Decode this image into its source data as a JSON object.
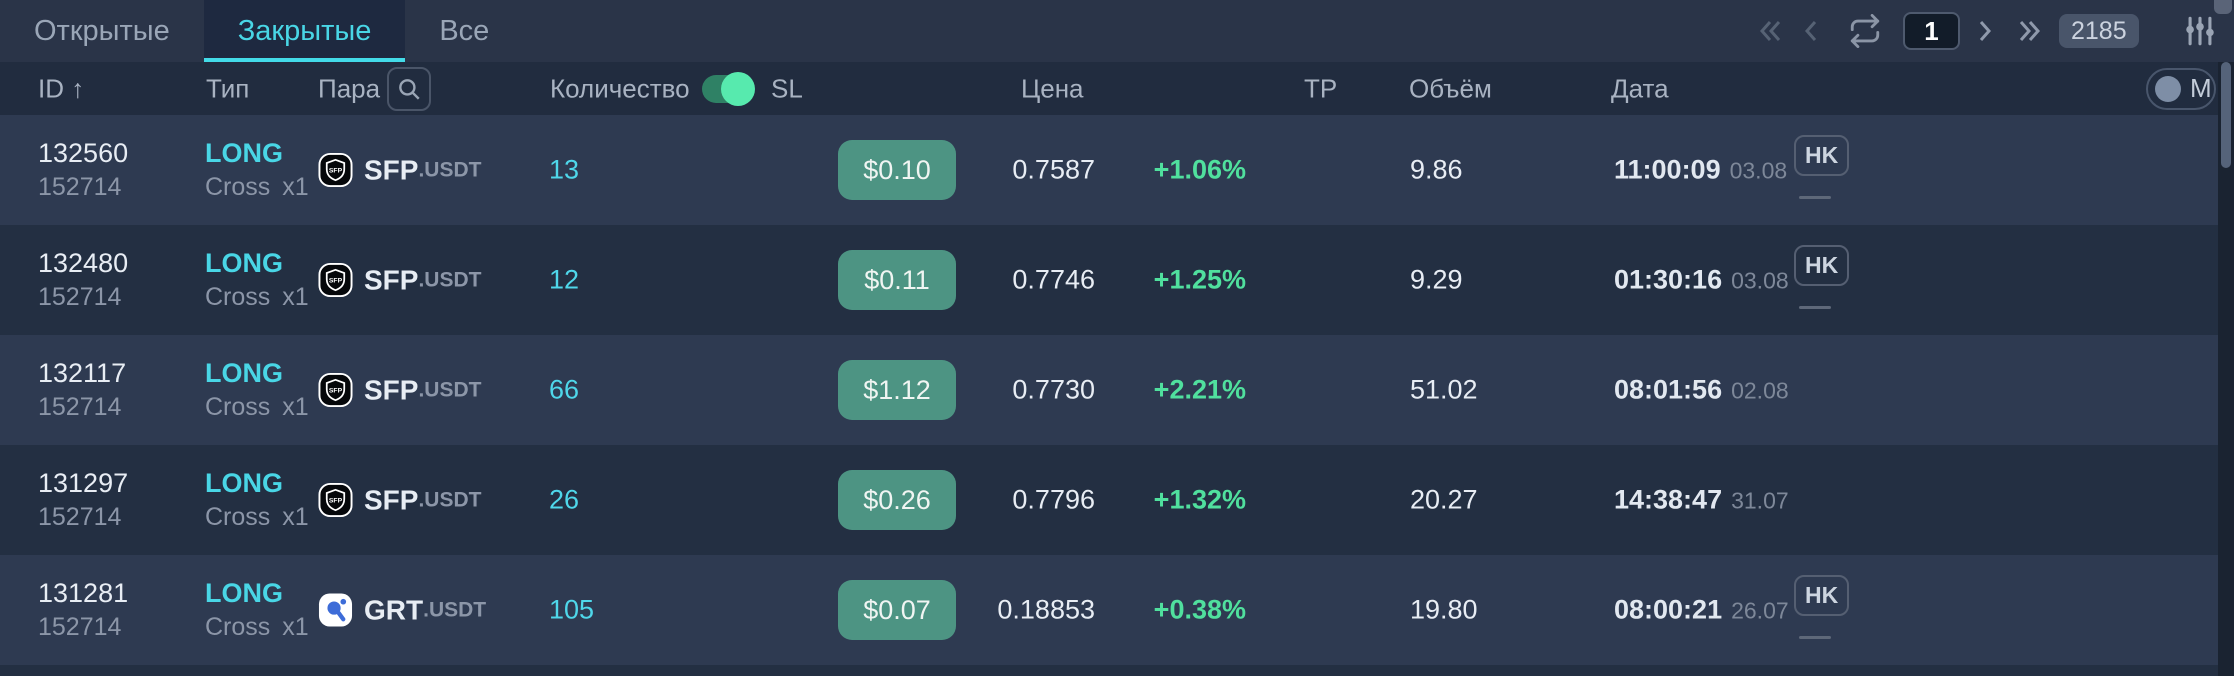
{
  "tabs": [
    {
      "label": "Открытые",
      "active": false
    },
    {
      "label": "Закрытые",
      "active": true
    },
    {
      "label": "Все",
      "active": false
    }
  ],
  "pagination": {
    "page": "1",
    "total_pages": "2185",
    "icons": [
      "double-chevron-left",
      "chevron-left",
      "repeat",
      "chevron-right",
      "double-chevron-right",
      "sliders-filter"
    ]
  },
  "columns": {
    "id": "ID",
    "id_sort": "↑",
    "type": "Тип",
    "pair": "Пара",
    "quantity": "Количество",
    "sl": "SL",
    "price": "Цена",
    "tp": "TP",
    "volume": "Объём",
    "date": "Дата"
  },
  "mode_toggle": {
    "label": "M",
    "state": "off"
  },
  "quantity_toggle": {
    "state": "on"
  },
  "badges": {
    "hk": "HK"
  },
  "rows": [
    {
      "id": "132560",
      "sub_id": "152714",
      "side": "LONG",
      "margin_mode": "Cross",
      "leverage": "x1",
      "coin": "sfp",
      "pair": "SFP",
      "quote": ".USDT",
      "qty": "13",
      "sl": "$0.10",
      "price": "0.7587",
      "pct": "+1.06%",
      "volume": "9.86",
      "time": "11:00:09",
      "date": "03.08",
      "hk": true
    },
    {
      "id": "132480",
      "sub_id": "152714",
      "side": "LONG",
      "margin_mode": "Cross",
      "leverage": "x1",
      "coin": "sfp",
      "pair": "SFP",
      "quote": ".USDT",
      "qty": "12",
      "sl": "$0.11",
      "price": "0.7746",
      "pct": "+1.25%",
      "volume": "9.29",
      "time": "01:30:16",
      "date": "03.08",
      "hk": true
    },
    {
      "id": "132117",
      "sub_id": "152714",
      "side": "LONG",
      "margin_mode": "Cross",
      "leverage": "x1",
      "coin": "sfp",
      "pair": "SFP",
      "quote": ".USDT",
      "qty": "66",
      "sl": "$1.12",
      "price": "0.7730",
      "pct": "+2.21%",
      "volume": "51.02",
      "time": "08:01:56",
      "date": "02.08",
      "hk": false
    },
    {
      "id": "131297",
      "sub_id": "152714",
      "side": "LONG",
      "margin_mode": "Cross",
      "leverage": "x1",
      "coin": "sfp",
      "pair": "SFP",
      "quote": ".USDT",
      "qty": "26",
      "sl": "$0.26",
      "price": "0.7796",
      "pct": "+1.32%",
      "volume": "20.27",
      "time": "14:38:47",
      "date": "31.07",
      "hk": false
    },
    {
      "id": "131281",
      "sub_id": "152714",
      "side": "LONG",
      "margin_mode": "Cross",
      "leverage": "x1",
      "coin": "grt",
      "pair": "GRT",
      "quote": ".USDT",
      "qty": "105",
      "sl": "$0.07",
      "price": "0.18853",
      "pct": "+0.38%",
      "volume": "19.80",
      "time": "08:00:21",
      "date": "26.07",
      "hk": true
    }
  ],
  "colors": {
    "accent_cyan": "#49d6e6",
    "profit_green": "#50e09e",
    "sl_button": "#4d9483",
    "toggle_on": "#57eaae",
    "row_light": "#2e3a51",
    "row_dark": "#232f42",
    "header_bg": "#212c3f",
    "topbar_bg": "#2a3448",
    "active_tab_bg": "#1e2940"
  }
}
